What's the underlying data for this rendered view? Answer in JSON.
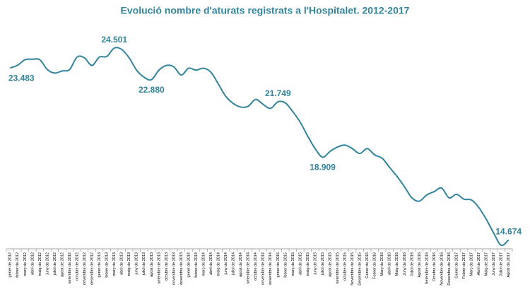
{
  "chart_data": {
    "type": "line",
    "title": "Evolució nombre d'aturats registrats a l'Hospitalet. 2012-2017",
    "categories": [
      "gener de 2012",
      "febrer de 2012",
      "març de 2012",
      "abril de 2012",
      "maig de 2012",
      "juny de 2012",
      "juliol de 2012",
      "agost de 2012",
      "setembre de 2012",
      "octubre de 2012",
      "novembre de 2012",
      "desembre de 2012",
      "gener de 2013",
      "febrer de 2013",
      "març de 2013",
      "abril de 2013",
      "maig de 2013",
      "juny de 2013",
      "juliol de 2013",
      "agost de 2013",
      "setembre de 2013",
      "octubre de 2013",
      "novembre de 2013",
      "desembre de 2013",
      "gener de 2014",
      "febrer de 2014",
      "març de 2014",
      "abril de 2014",
      "maig de 2014",
      "juny de 2014",
      "juliol de 2014",
      "agost de 2014",
      "setembre de 2014",
      "octubre de 2014",
      "novembre de 2014",
      "desembre de 2014",
      "gener de 2015",
      "febrer de 2015",
      "març de 2015",
      "abril de 2015",
      "maig de 2015",
      "juny de 2015",
      "juliol de 2015",
      "agost de 2015",
      "setembre de 2015",
      "octubre de 2015",
      "Novembre de 2015",
      "Desembre de 2015",
      "Gener de 2016",
      "Febrer de 2016",
      "Març de 2016",
      "abril de 2016",
      "Maig de 2016",
      "Juny de 2016",
      "Juliol de 2016",
      "Agost de 2016",
      "Setembre de 2016",
      "Octubre de 2016",
      "Novembre de 2016",
      "Desembre de 2016",
      "Gener de 2017",
      "Febrer de 2017",
      "Març de 2017",
      "Abril de 2017",
      "Maig de 2017",
      "Juny de 2017",
      "Juliol de 2017",
      "Agost de 2017"
    ],
    "values": [
      23483,
      23620,
      23900,
      23930,
      23900,
      23400,
      23220,
      23330,
      23400,
      24040,
      24000,
      23610,
      24040,
      24070,
      24501,
      24430,
      24000,
      23370,
      23010,
      22880,
      23370,
      23610,
      23540,
      23120,
      23470,
      23370,
      23470,
      23260,
      22650,
      22020,
      21660,
      21480,
      21520,
      21870,
      21620,
      21410,
      21749,
      21690,
      21240,
      20700,
      19990,
      19350,
      18909,
      19210,
      19430,
      19530,
      19350,
      19100,
      19350,
      19030,
      18860,
      18390,
      17930,
      17400,
      16830,
      16660,
      16980,
      17150,
      17330,
      16830,
      17010,
      16760,
      16720,
      16330,
      15730,
      15020,
      14400,
      14674
    ],
    "value_labels": [
      "23.483",
      null,
      null,
      null,
      null,
      null,
      null,
      null,
      null,
      null,
      null,
      null,
      null,
      null,
      "24.501",
      null,
      null,
      null,
      null,
      "22.880",
      null,
      null,
      null,
      null,
      null,
      null,
      null,
      null,
      null,
      null,
      null,
      null,
      null,
      null,
      null,
      null,
      "21.749",
      null,
      null,
      null,
      null,
      null,
      "18.909",
      null,
      null,
      null,
      null,
      null,
      null,
      null,
      null,
      null,
      null,
      null,
      null,
      null,
      null,
      null,
      null,
      null,
      null,
      null,
      null,
      null,
      null,
      null,
      null,
      "14.674"
    ],
    "color": "#31849b"
  }
}
